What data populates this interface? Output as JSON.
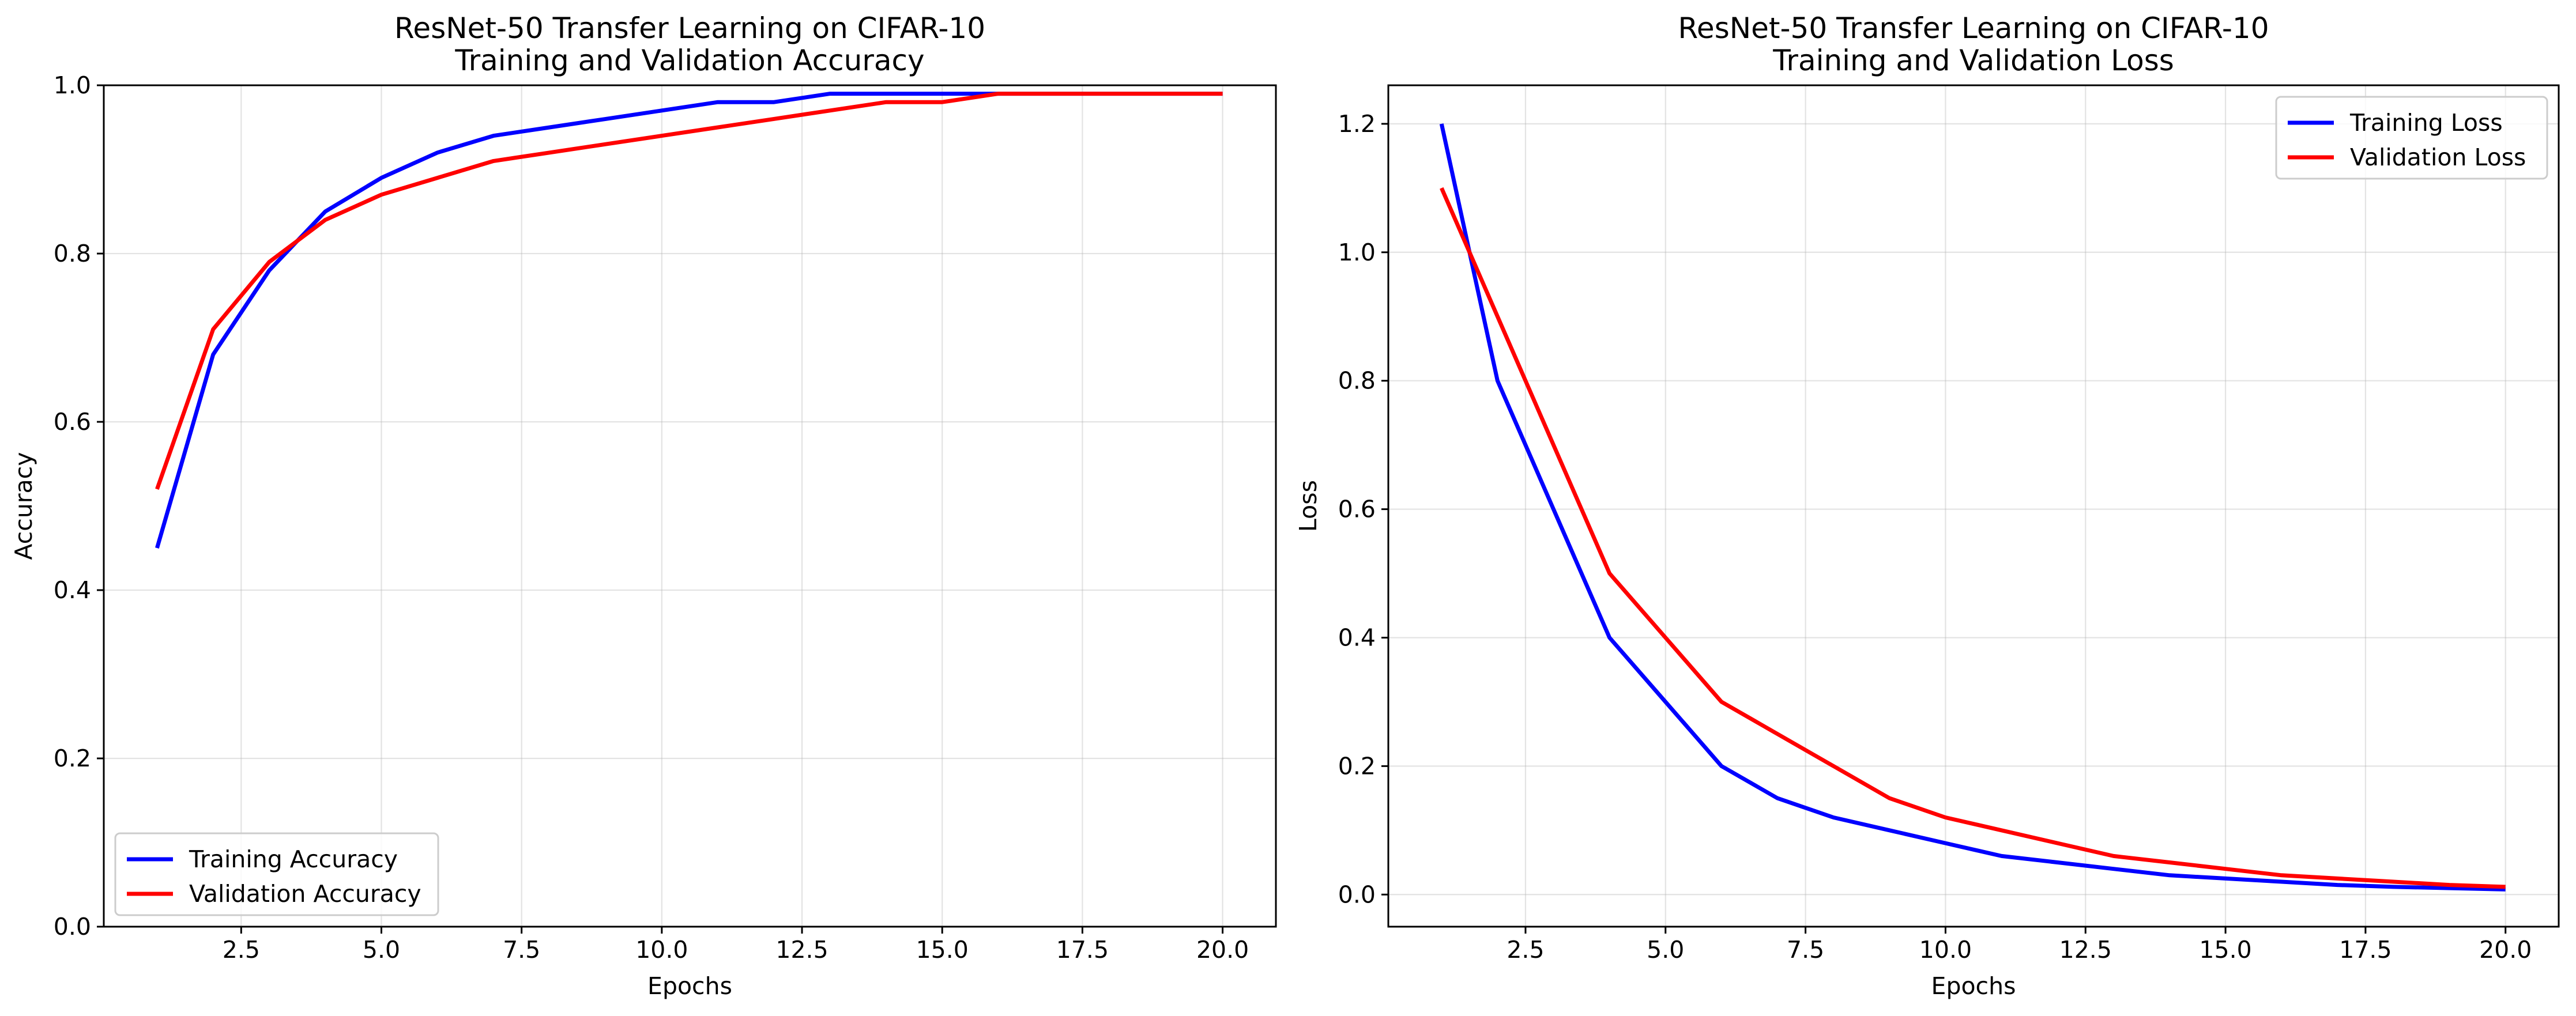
{
  "chart_data": [
    {
      "type": "line",
      "title": [
        "ResNet-50 Transfer Learning on CIFAR-10",
        "Training and Validation Accuracy"
      ],
      "xlabel": "Epochs",
      "ylabel": "Accuracy",
      "xlim": [
        0.05,
        20.95
      ],
      "ylim": [
        0.0,
        1.0
      ],
      "xticks": [
        2.5,
        5.0,
        7.5,
        10.0,
        12.5,
        15.0,
        17.5,
        20.0
      ],
      "xtick_labels": [
        "2.5",
        "5.0",
        "7.5",
        "10.0",
        "12.5",
        "15.0",
        "17.5",
        "20.0"
      ],
      "yticks": [
        0.0,
        0.2,
        0.4,
        0.6,
        0.8,
        1.0
      ],
      "ytick_labels": [
        "0.0",
        "0.2",
        "0.4",
        "0.6",
        "0.8",
        "1.0"
      ],
      "grid": true,
      "legend_position": "bottom-left",
      "x": [
        1,
        2,
        3,
        4,
        5,
        6,
        7,
        8,
        9,
        10,
        11,
        12,
        13,
        14,
        15,
        16,
        17,
        18,
        19,
        20
      ],
      "series": [
        {
          "name": "Training Accuracy",
          "color": "#0000ff",
          "values": [
            0.45,
            0.68,
            0.78,
            0.85,
            0.89,
            0.92,
            0.94,
            0.95,
            0.96,
            0.97,
            0.98,
            0.98,
            0.99,
            0.99,
            0.99,
            0.99,
            0.99,
            0.99,
            0.99,
            0.99
          ]
        },
        {
          "name": "Validation Accuracy",
          "color": "#ff0000",
          "values": [
            0.52,
            0.71,
            0.79,
            0.84,
            0.87,
            0.89,
            0.91,
            0.92,
            0.93,
            0.94,
            0.95,
            0.96,
            0.97,
            0.98,
            0.98,
            0.99,
            0.99,
            0.99,
            0.99,
            0.99
          ]
        }
      ]
    },
    {
      "type": "line",
      "title": [
        "ResNet-50 Transfer Learning on CIFAR-10",
        "Training and Validation Loss"
      ],
      "xlabel": "Epochs",
      "ylabel": "Loss",
      "xlim": [
        0.05,
        20.95
      ],
      "ylim": [
        -0.05,
        1.26
      ],
      "xticks": [
        2.5,
        5.0,
        7.5,
        10.0,
        12.5,
        15.0,
        17.5,
        20.0
      ],
      "xtick_labels": [
        "2.5",
        "5.0",
        "7.5",
        "10.0",
        "12.5",
        "15.0",
        "17.5",
        "20.0"
      ],
      "yticks": [
        0.0,
        0.2,
        0.4,
        0.6,
        0.8,
        1.0,
        1.2
      ],
      "ytick_labels": [
        "0.0",
        "0.2",
        "0.4",
        "0.6",
        "0.8",
        "1.0",
        "1.2"
      ],
      "grid": true,
      "legend_position": "top-right",
      "x": [
        1,
        2,
        3,
        4,
        5,
        6,
        7,
        8,
        9,
        10,
        11,
        12,
        13,
        14,
        15,
        16,
        17,
        18,
        19,
        20
      ],
      "series": [
        {
          "name": "Training Loss",
          "color": "#0000ff",
          "values": [
            1.2,
            0.8,
            0.6,
            0.4,
            0.3,
            0.2,
            0.15,
            0.12,
            0.1,
            0.08,
            0.06,
            0.05,
            0.04,
            0.03,
            0.025,
            0.02,
            0.015,
            0.012,
            0.01,
            0.008
          ]
        },
        {
          "name": "Validation Loss",
          "color": "#ff0000",
          "values": [
            1.1,
            0.9,
            0.7,
            0.5,
            0.4,
            0.3,
            0.25,
            0.2,
            0.15,
            0.12,
            0.1,
            0.08,
            0.06,
            0.05,
            0.04,
            0.03,
            0.025,
            0.02,
            0.015,
            0.012
          ]
        }
      ]
    }
  ]
}
